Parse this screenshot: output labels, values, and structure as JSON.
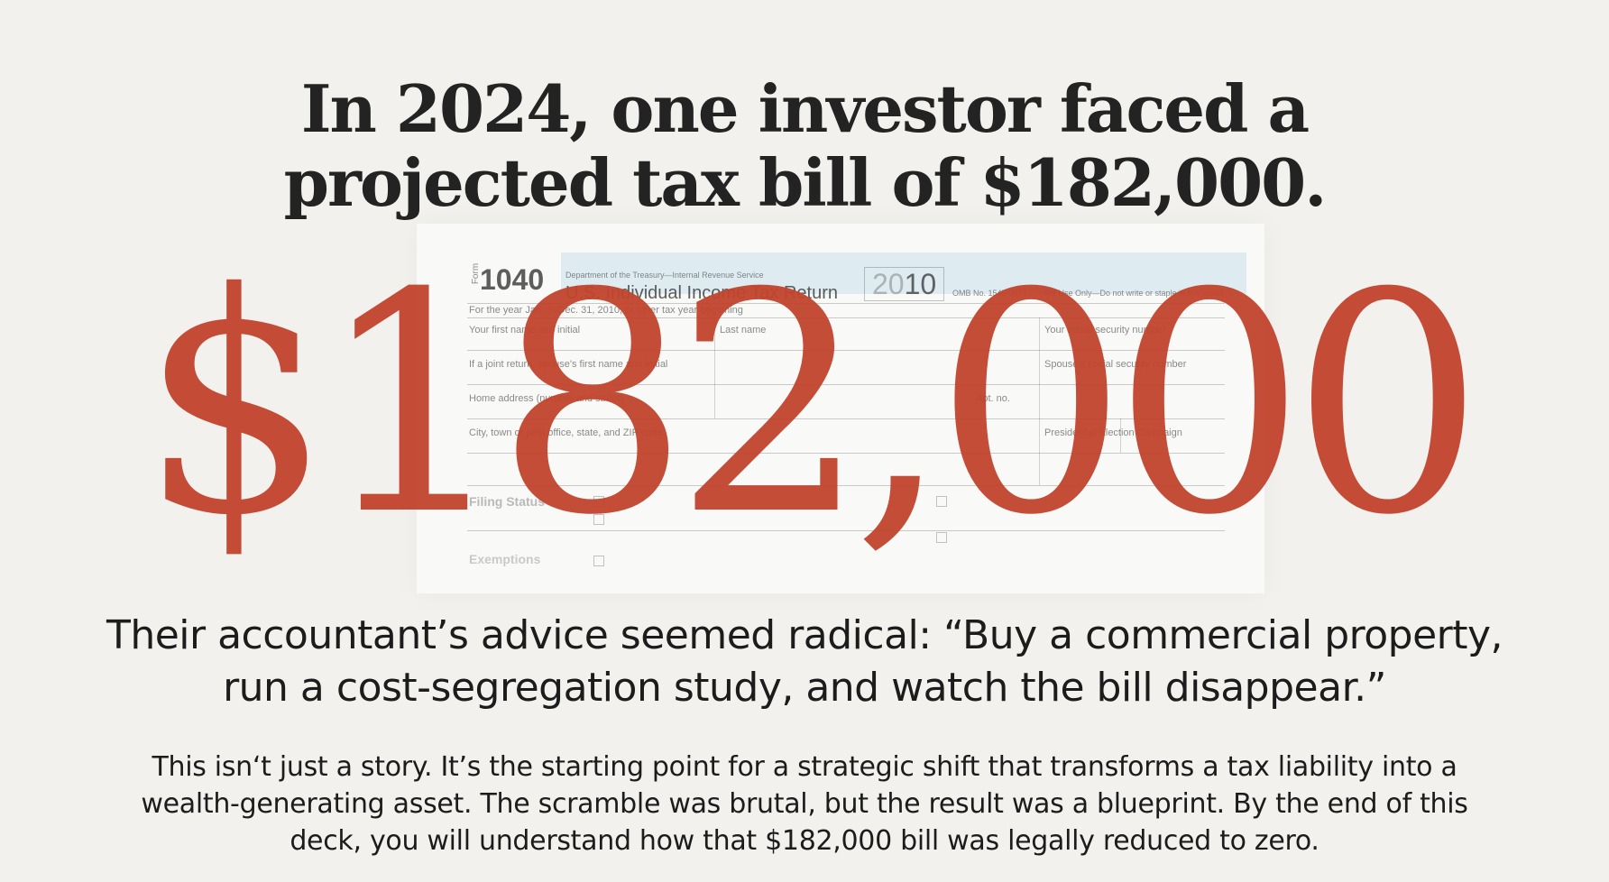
{
  "headline": {
    "line1": "In 2024, one investor faced a",
    "line2": "projected tax bill of $182,000."
  },
  "tax_form": {
    "form_label": "Form",
    "form_number": "1040",
    "dept": "Department of the Treasury—Internal Revenue Service",
    "title": "U.S. Individual Income Tax Return",
    "year_prefix": "20",
    "year_suffix": "10",
    "omb": "OMB No. 1545-0074",
    "irs_use": "IRS Use Only—Do not write or staple in this space.",
    "row_labels": [
      "For the year Jan. 1–Dec. 31, 2010, or other tax year beginning",
      "Your first name and initial",
      "Last name",
      "Your social security number",
      "If a joint return, spouse's first name and initial",
      "Spouse's social security number",
      "Home address (number and street)",
      "Apt. no.",
      "City, town or post office, state, and ZIP code",
      "Presidential Election Campaign",
      "Filing Status",
      "Exemptions"
    ]
  },
  "big_amount": "$182,000",
  "quote": {
    "line1": "Their accountant’s advice seemed radical: “Buy a commercial property,",
    "line2": "run a cost-segregation study, and watch the bill disappear.”"
  },
  "body": {
    "line1": "This isn‘t just a story. It’s the starting point for a strategic shift that transforms a tax liability into a",
    "line2": "wealth-generating asset. The scramble was brutal, but the result was a blueprint. By the end of this",
    "line3": "deck, you will understand how that $182,000 bill was legally reduced to zero."
  },
  "colors": {
    "accent": "#c2442e",
    "background": "#f2f1ee",
    "text": "#1c1c1c"
  }
}
